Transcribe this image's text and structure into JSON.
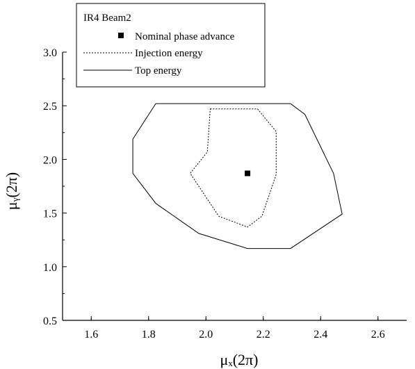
{
  "chart_data": {
    "type": "line",
    "title": "",
    "xlabel": "μₓ(2π)",
    "ylabel": "μᵧ(2π)",
    "xlim": [
      1.5,
      2.7
    ],
    "ylim": [
      0.5,
      3.0
    ],
    "x_ticks": [
      1.6,
      1.8,
      2.0,
      2.2,
      2.4,
      2.6
    ],
    "y_ticks": [
      0.5,
      1.0,
      1.5,
      2.0,
      2.5,
      3.0
    ],
    "x_tick_labels": [
      "1.6",
      "1.8",
      "2.0",
      "2.2",
      "2.4",
      "2.6"
    ],
    "y_tick_labels": [
      "0.5",
      "1.0",
      "1.5",
      "2.0",
      "2.5",
      "3.0"
    ],
    "grid": false,
    "legend": {
      "placement": "top-left",
      "title": "IR4 Beam2"
    },
    "series": [
      {
        "name": "Nominal phase advance",
        "kind": "point",
        "color": "#000000",
        "points": [
          [
            2.145,
            1.87
          ]
        ]
      },
      {
        "name": "Injection energy",
        "kind": "closed-line",
        "style": "dashed",
        "color": "#000000",
        "points": [
          [
            2.015,
            2.47
          ],
          [
            2.18,
            2.47
          ],
          [
            2.245,
            2.26
          ],
          [
            2.245,
            1.86
          ],
          [
            2.195,
            1.47
          ],
          [
            2.145,
            1.37
          ],
          [
            2.045,
            1.47
          ],
          [
            1.945,
            1.87
          ],
          [
            2.005,
            2.07
          ]
        ]
      },
      {
        "name": "Top energy",
        "kind": "closed-line",
        "style": "solid",
        "color": "#000000",
        "points": [
          [
            1.825,
            2.52
          ],
          [
            2.295,
            2.52
          ],
          [
            2.345,
            2.42
          ],
          [
            2.445,
            1.87
          ],
          [
            2.475,
            1.49
          ],
          [
            2.295,
            1.17
          ],
          [
            2.145,
            1.17
          ],
          [
            1.975,
            1.31
          ],
          [
            1.825,
            1.59
          ],
          [
            1.745,
            1.87
          ],
          [
            1.745,
            2.19
          ]
        ]
      }
    ]
  }
}
